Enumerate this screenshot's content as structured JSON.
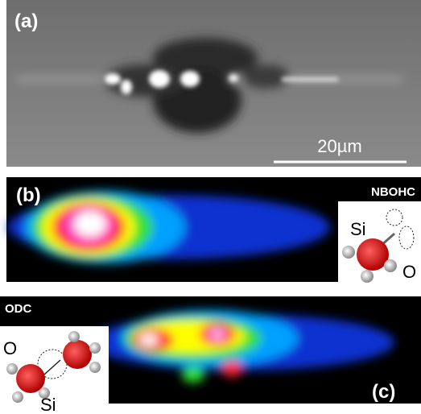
{
  "panels": [
    {
      "label": "(a)",
      "scale_bar": "20µm"
    },
    {
      "label": "(b)",
      "defect": "NBOHC",
      "atoms": [
        "Si",
        "O"
      ]
    },
    {
      "label": "(c)",
      "defect": "ODC",
      "atoms": [
        "O",
        "Si"
      ]
    }
  ]
}
